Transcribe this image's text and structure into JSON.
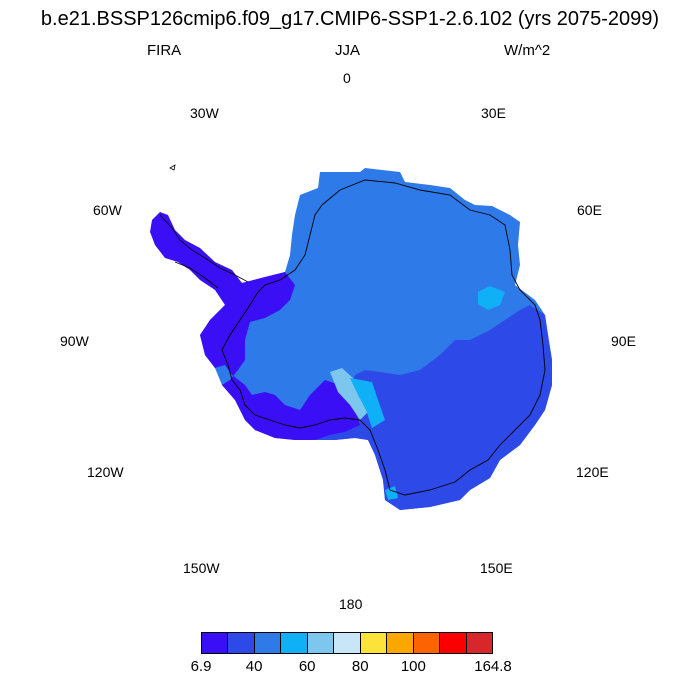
{
  "title": "b.e21.BSSP126cmip6.f09_g17.CMIP6-SSP1-2.6.102 (yrs 2075-2099)",
  "variable": "FIRA",
  "season": "JJA",
  "units": "W/m^2",
  "longitude_labels": {
    "0": "0",
    "30E": "30E",
    "60E": "60E",
    "90E": "90E",
    "120E": "120E",
    "150E": "150E",
    "180": "180",
    "150W": "150W",
    "120W": "120W",
    "90W": "90W",
    "60W": "60W",
    "30W": "30W"
  },
  "colorbar": {
    "colors": [
      "#3b0ff5",
      "#2d4ae8",
      "#2f7ae9",
      "#0fb0f5",
      "#7dc7ef",
      "#c8e6f7",
      "#fde23a",
      "#fca600",
      "#fb6400",
      "#fa0000",
      "#d8272b"
    ],
    "labels": [
      "6.9",
      "40",
      "60",
      "80",
      "100",
      "164.8"
    ]
  }
}
